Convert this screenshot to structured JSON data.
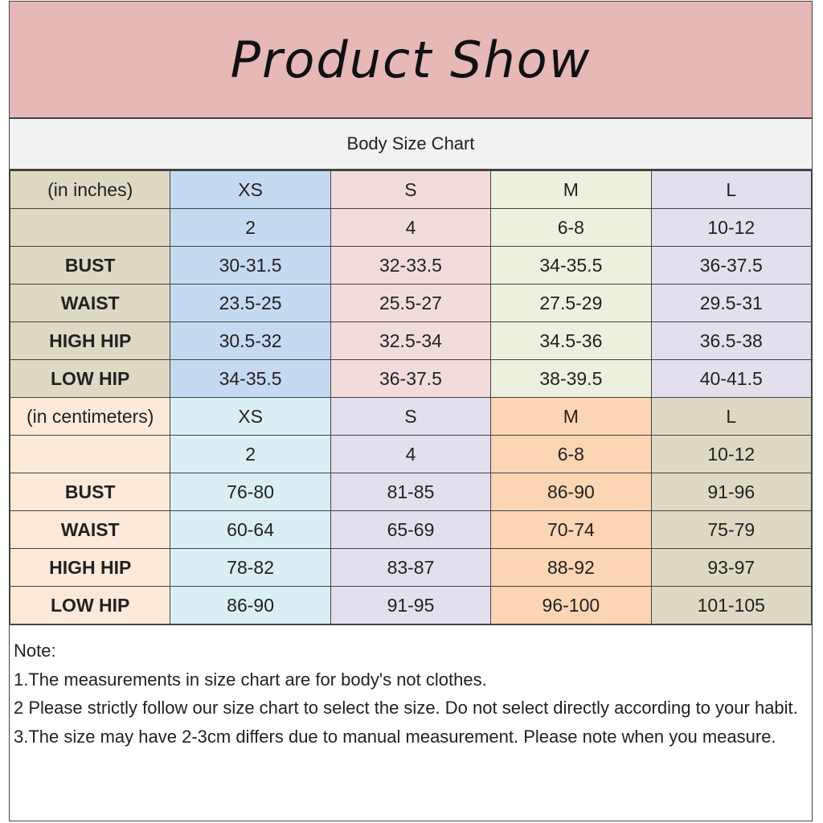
{
  "title": "Product Show",
  "subtitle": "Body Size Chart",
  "inches": {
    "unit_label": "(in inches)",
    "sizes": [
      "XS",
      "S",
      "M",
      "L"
    ],
    "numbers": [
      "2",
      "4",
      "6-8",
      "10-12"
    ],
    "rows": [
      {
        "label": "BUST",
        "values": [
          "30-31.5",
          "32-33.5",
          "34-35.5",
          "36-37.5"
        ]
      },
      {
        "label": "WAIST",
        "values": [
          "23.5-25",
          "25.5-27",
          "27.5-29",
          "29.5-31"
        ]
      },
      {
        "label": "HIGH HIP",
        "values": [
          "30.5-32",
          "32.5-34",
          "34.5-36",
          "36.5-38"
        ]
      },
      {
        "label": "LOW HIP",
        "values": [
          "34-35.5",
          "36-37.5",
          "38-39.5",
          "40-41.5"
        ]
      }
    ],
    "colors": [
      "#ddd9c4",
      "#c5d9f1",
      "#f2dcdb",
      "#ebf1de",
      "#e4dfec"
    ]
  },
  "centimeters": {
    "unit_label": "(in centimeters)",
    "sizes": [
      "XS",
      "S",
      "M",
      "L"
    ],
    "numbers": [
      "2",
      "4",
      "6-8",
      "10-12"
    ],
    "rows": [
      {
        "label": "BUST",
        "values": [
          "76-80",
          "81-85",
          "86-90",
          "91-96"
        ]
      },
      {
        "label": "WAIST",
        "values": [
          "60-64",
          "65-69",
          "70-74",
          "75-79"
        ]
      },
      {
        "label": "HIGH HIP",
        "values": [
          "78-82",
          "83-87",
          "88-92",
          "93-97"
        ]
      },
      {
        "label": "LOW HIP",
        "values": [
          "86-90",
          "91-95",
          "96-100",
          "101-105"
        ]
      }
    ],
    "colors": [
      "#fde9d9",
      "#daeef3",
      "#e4dfec",
      "#fcd5b4",
      "#ddd9c4"
    ]
  },
  "notes": [
    "Note:",
    "1.The measurements in size chart are for body's not clothes.",
    "2 Please strictly follow our size chart to select the size. Do not select directly according to your habit.",
    "3.The size may have 2-3cm differs due to manual measurement. Please note when you measure."
  ]
}
